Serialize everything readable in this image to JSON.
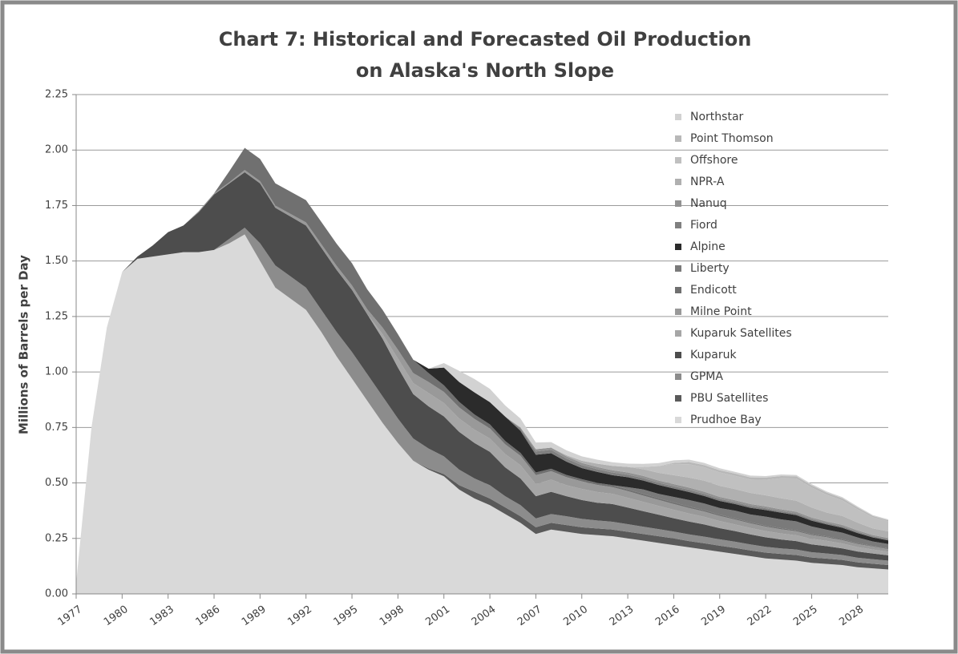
{
  "chart_data": {
    "type": "stacked_area",
    "title": [
      "Chart 7:  Historical and Forecasted Oil Production",
      "on Alaska's North Slope"
    ],
    "y_label": "Millions of Barrels per Day",
    "x": [
      1977,
      1978,
      1979,
      1980,
      1981,
      1982,
      1983,
      1984,
      1985,
      1986,
      1987,
      1988,
      1989,
      1990,
      1991,
      1992,
      1993,
      1994,
      1995,
      1996,
      1997,
      1998,
      1999,
      2000,
      2001,
      2002,
      2003,
      2004,
      2005,
      2006,
      2007,
      2008,
      2009,
      2010,
      2011,
      2012,
      2013,
      2014,
      2015,
      2016,
      2017,
      2018,
      2019,
      2020,
      2021,
      2022,
      2023,
      2024,
      2025,
      2026,
      2027,
      2028,
      2029,
      2030
    ],
    "xlim": [
      1977,
      2030
    ],
    "xticks": [
      1977,
      1980,
      1983,
      1986,
      1989,
      1992,
      1995,
      1998,
      2001,
      2004,
      2007,
      2010,
      2013,
      2016,
      2019,
      2022,
      2025,
      2028
    ],
    "ylim": [
      0,
      2.25
    ],
    "yticks": [
      {
        "value": 0,
        "label": "0.00"
      },
      {
        "value": 0.25,
        "label": "0.25"
      },
      {
        "value": 0.5,
        "label": "0.50"
      },
      {
        "value": 0.75,
        "label": "0.75"
      },
      {
        "value": 1,
        "label": "1.00"
      },
      {
        "value": 1.25,
        "label": "1.25"
      },
      {
        "value": 1.5,
        "label": "1.50"
      },
      {
        "value": 1.75,
        "label": "1.75"
      },
      {
        "value": 2,
        "label": "2.00"
      },
      {
        "value": 2.25,
        "label": "2.25"
      }
    ],
    "grid": true,
    "legend": "upper right",
    "series": [
      {
        "name": "Prudhoe Bay",
        "color": "#d9d9d9",
        "values": [
          0.05,
          0.75,
          1.2,
          1.45,
          1.51,
          1.52,
          1.53,
          1.54,
          1.54,
          1.55,
          1.58,
          1.62,
          1.5,
          1.38,
          1.33,
          1.28,
          1.18,
          1.07,
          0.97,
          0.87,
          0.77,
          0.68,
          0.6,
          0.56,
          0.53,
          0.47,
          0.43,
          0.4,
          0.36,
          0.32,
          0.27,
          0.29,
          0.28,
          0.27,
          0.265,
          0.26,
          0.25,
          0.24,
          0.23,
          0.22,
          0.21,
          0.2,
          0.19,
          0.18,
          0.17,
          0.16,
          0.155,
          0.15,
          0.14,
          0.135,
          0.13,
          0.12,
          0.115,
          0.11
        ]
      },
      {
        "name": "PBU Satellites",
        "color": "#5a5a5a",
        "values": [
          0,
          0,
          0,
          0,
          0,
          0,
          0,
          0,
          0,
          0,
          0,
          0,
          0,
          0,
          0,
          0,
          0,
          0,
          0,
          0,
          0,
          0,
          0,
          0.005,
          0.01,
          0.02,
          0.03,
          0.03,
          0.03,
          0.03,
          0.03,
          0.03,
          0.03,
          0.03,
          0.03,
          0.03,
          0.03,
          0.03,
          0.03,
          0.03,
          0.028,
          0.028,
          0.027,
          0.027,
          0.026,
          0.026,
          0.025,
          0.025,
          0.024,
          0.024,
          0.023,
          0.022,
          0.021,
          0.02
        ]
      },
      {
        "name": "GPMA",
        "color": "#8c8c8c",
        "values": [
          0,
          0,
          0,
          0,
          0,
          0,
          0,
          0,
          0,
          0,
          0.02,
          0.03,
          0.08,
          0.1,
          0.1,
          0.1,
          0.1,
          0.11,
          0.12,
          0.12,
          0.12,
          0.11,
          0.1,
          0.09,
          0.08,
          0.07,
          0.06,
          0.06,
          0.05,
          0.05,
          0.04,
          0.04,
          0.04,
          0.038,
          0.036,
          0.035,
          0.034,
          0.033,
          0.032,
          0.031,
          0.03,
          0.03,
          0.029,
          0.028,
          0.027,
          0.026,
          0.025,
          0.025,
          0.024,
          0.023,
          0.022,
          0.021,
          0.02,
          0.02
        ]
      },
      {
        "name": "Kuparuk",
        "color": "#4d4d4d",
        "values": [
          0,
          0,
          0,
          0,
          0.01,
          0.05,
          0.1,
          0.12,
          0.18,
          0.25,
          0.25,
          0.25,
          0.27,
          0.26,
          0.27,
          0.28,
          0.28,
          0.28,
          0.28,
          0.27,
          0.26,
          0.23,
          0.2,
          0.19,
          0.18,
          0.17,
          0.16,
          0.15,
          0.13,
          0.12,
          0.1,
          0.1,
          0.09,
          0.085,
          0.08,
          0.08,
          0.075,
          0.07,
          0.065,
          0.06,
          0.058,
          0.055,
          0.05,
          0.048,
          0.045,
          0.043,
          0.04,
          0.038,
          0.035,
          0.033,
          0.03,
          0.028,
          0.026,
          0.024
        ]
      },
      {
        "name": "Kuparuk Satellites",
        "color": "#a6a6a6",
        "values": [
          0,
          0,
          0,
          0,
          0,
          0,
          0,
          0,
          0,
          0,
          0,
          0,
          0,
          0,
          0,
          0,
          0,
          0,
          0,
          0,
          0.02,
          0.04,
          0.05,
          0.06,
          0.06,
          0.06,
          0.06,
          0.06,
          0.06,
          0.06,
          0.055,
          0.055,
          0.05,
          0.05,
          0.048,
          0.046,
          0.044,
          0.042,
          0.04,
          0.038,
          0.036,
          0.034,
          0.032,
          0.03,
          0.029,
          0.028,
          0.027,
          0.026,
          0.025,
          0.024,
          0.022,
          0.02,
          0.018,
          0.016
        ]
      },
      {
        "name": "Milne Point",
        "color": "#999999",
        "values": [
          0,
          0,
          0,
          0,
          0,
          0,
          0,
          0,
          0.005,
          0.005,
          0.005,
          0.01,
          0.01,
          0.01,
          0.012,
          0.014,
          0.016,
          0.018,
          0.02,
          0.022,
          0.03,
          0.04,
          0.045,
          0.05,
          0.05,
          0.05,
          0.048,
          0.046,
          0.044,
          0.042,
          0.04,
          0.038,
          0.036,
          0.034,
          0.032,
          0.03,
          0.03,
          0.028,
          0.027,
          0.026,
          0.025,
          0.024,
          0.023,
          0.022,
          0.021,
          0.02,
          0.019,
          0.018,
          0.017,
          0.016,
          0.015,
          0.014,
          0.013,
          0.012
        ]
      },
      {
        "name": "Endicott",
        "color": "#707070",
        "values": [
          0,
          0,
          0,
          0,
          0,
          0,
          0,
          0,
          0,
          0,
          0.05,
          0.1,
          0.1,
          0.1,
          0.1,
          0.1,
          0.1,
          0.1,
          0.1,
          0.09,
          0.08,
          0.07,
          0.06,
          0.04,
          0.03,
          0.025,
          0.02,
          0.018,
          0.015,
          0.013,
          0.012,
          0.011,
          0.01,
          0.01,
          0.009,
          0.009,
          0.008,
          0.008,
          0.007,
          0.007,
          0.006,
          0.006,
          0.006,
          0.005,
          0.005,
          0.005,
          0.005,
          0.005,
          0.004,
          0.004,
          0.004,
          0.004,
          0.003,
          0.003
        ]
      },
      {
        "name": "Liberty",
        "color": "#7a7a7a",
        "values": [
          0,
          0,
          0,
          0,
          0,
          0,
          0,
          0,
          0,
          0,
          0,
          0,
          0,
          0,
          0,
          0,
          0,
          0,
          0,
          0,
          0,
          0,
          0,
          0,
          0,
          0,
          0,
          0,
          0,
          0,
          0,
          0,
          0,
          0,
          0,
          0,
          0.01,
          0.02,
          0.02,
          0.025,
          0.03,
          0.03,
          0.03,
          0.035,
          0.035,
          0.04,
          0.04,
          0.04,
          0.035,
          0.03,
          0.03,
          0.025,
          0.02,
          0.02
        ]
      },
      {
        "name": "Alpine",
        "color": "#2b2b2b",
        "values": [
          0,
          0,
          0,
          0,
          0,
          0,
          0,
          0,
          0,
          0,
          0,
          0,
          0,
          0,
          0,
          0,
          0,
          0,
          0,
          0,
          0,
          0,
          0,
          0.02,
          0.08,
          0.09,
          0.1,
          0.1,
          0.11,
          0.1,
          0.08,
          0.07,
          0.06,
          0.05,
          0.05,
          0.045,
          0.045,
          0.04,
          0.04,
          0.038,
          0.036,
          0.034,
          0.032,
          0.03,
          0.03,
          0.03,
          0.03,
          0.028,
          0.026,
          0.024,
          0.022,
          0.02,
          0.018,
          0.016
        ]
      },
      {
        "name": "Fiord",
        "color": "#808080",
        "values": [
          0,
          0,
          0,
          0,
          0,
          0,
          0,
          0,
          0,
          0,
          0,
          0,
          0,
          0,
          0,
          0,
          0,
          0,
          0,
          0,
          0,
          0,
          0,
          0,
          0,
          0,
          0,
          0,
          0,
          0.01,
          0.015,
          0.015,
          0.014,
          0.013,
          0.012,
          0.012,
          0.011,
          0.011,
          0.01,
          0.01,
          0.01,
          0.009,
          0.009,
          0.008,
          0.008,
          0.008,
          0.007,
          0.007,
          0.007,
          0.006,
          0.006,
          0.006,
          0.005,
          0.005
        ]
      },
      {
        "name": "Nanuq",
        "color": "#929292",
        "values": [
          0,
          0,
          0,
          0,
          0,
          0,
          0,
          0,
          0,
          0,
          0,
          0,
          0,
          0,
          0,
          0,
          0,
          0,
          0,
          0,
          0,
          0,
          0,
          0,
          0,
          0,
          0,
          0,
          0,
          0.005,
          0.01,
          0.01,
          0.01,
          0.01,
          0.01,
          0.01,
          0.01,
          0.01,
          0.01,
          0.01,
          0.01,
          0.01,
          0.009,
          0.009,
          0.009,
          0.008,
          0.008,
          0.008,
          0.007,
          0.007,
          0.007,
          0.006,
          0.006,
          0.006
        ]
      },
      {
        "name": "NPR-A",
        "color": "#b0b0b0",
        "values": [
          0,
          0,
          0,
          0,
          0,
          0,
          0,
          0,
          0,
          0,
          0,
          0,
          0,
          0,
          0,
          0,
          0,
          0,
          0,
          0,
          0,
          0,
          0,
          0,
          0,
          0,
          0,
          0,
          0,
          0,
          0,
          0,
          0.005,
          0.01,
          0.015,
          0.02,
          0.025,
          0.03,
          0.035,
          0.04,
          0.045,
          0.05,
          0.05,
          0.05,
          0.05,
          0.05,
          0.05,
          0.05,
          0.045,
          0.04,
          0.04,
          0.035,
          0.03,
          0.03
        ]
      },
      {
        "name": "Offshore",
        "color": "#c0c0c0",
        "values": [
          0,
          0,
          0,
          0,
          0,
          0,
          0,
          0,
          0,
          0,
          0,
          0,
          0,
          0,
          0,
          0,
          0,
          0,
          0,
          0,
          0,
          0,
          0,
          0,
          0,
          0,
          0,
          0,
          0,
          0,
          0,
          0,
          0,
          0,
          0,
          0,
          0,
          0.01,
          0.03,
          0.05,
          0.06,
          0.06,
          0.06,
          0.06,
          0.06,
          0.07,
          0.09,
          0.1,
          0.09,
          0.08,
          0.07,
          0.06,
          0.05,
          0.045
        ]
      },
      {
        "name": "Point Thomson",
        "color": "#b8b8b8",
        "values": [
          0,
          0,
          0,
          0,
          0,
          0,
          0,
          0,
          0,
          0,
          0,
          0,
          0,
          0,
          0,
          0,
          0,
          0,
          0,
          0,
          0,
          0,
          0,
          0,
          0,
          0,
          0,
          0,
          0,
          0,
          0,
          0,
          0,
          0,
          0,
          0,
          0,
          0,
          0,
          0.005,
          0.01,
          0.01,
          0.01,
          0.01,
          0.01,
          0.01,
          0.01,
          0.01,
          0.01,
          0.01,
          0.01,
          0.008,
          0.006,
          0.005
        ]
      },
      {
        "name": "Northstar",
        "color": "#d2d2d2",
        "values": [
          0,
          0,
          0,
          0,
          0,
          0,
          0,
          0,
          0,
          0,
          0,
          0,
          0,
          0,
          0,
          0,
          0,
          0,
          0,
          0,
          0,
          0,
          0,
          0,
          0.02,
          0.05,
          0.06,
          0.06,
          0.05,
          0.04,
          0.03,
          0.025,
          0.022,
          0.02,
          0.018,
          0.016,
          0.015,
          0.014,
          0.013,
          0.012,
          0.011,
          0.01,
          0.009,
          0.008,
          0.008,
          0.007,
          0.007,
          0.006,
          0.006,
          0.005,
          0.005,
          0.005,
          0.004,
          0.004
        ]
      }
    ]
  }
}
